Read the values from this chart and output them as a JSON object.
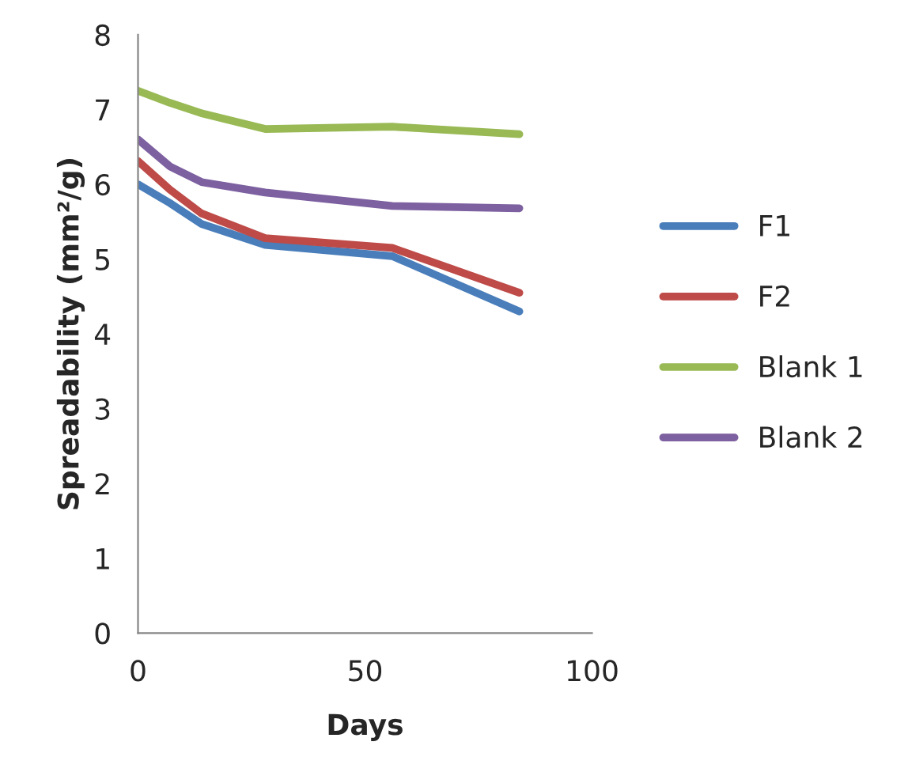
{
  "chart_data": {
    "type": "line",
    "xlabel": "Days",
    "ylabel": "Spreadability (mm²/g)",
    "x": [
      0,
      7,
      14,
      28,
      56,
      84
    ],
    "xlim": [
      0,
      100
    ],
    "xticks": [
      0,
      50,
      100
    ],
    "ylim": [
      0,
      8
    ],
    "yticks": [
      0,
      1,
      2,
      3,
      4,
      5,
      6,
      7,
      8
    ],
    "grid": false,
    "legend": "right",
    "marker": "none",
    "line_style": "solid",
    "series": [
      {
        "name": "F1",
        "color": "#4a7ebb",
        "values": [
          6.0,
          5.75,
          5.47,
          5.19,
          5.04,
          4.3
        ]
      },
      {
        "name": "F2",
        "color": "#be4b48",
        "values": [
          6.31,
          5.93,
          5.61,
          5.28,
          5.15,
          4.55
        ]
      },
      {
        "name": "Blank 1",
        "color": "#98b954",
        "values": [
          7.25,
          7.09,
          6.95,
          6.74,
          6.77,
          6.67
        ]
      },
      {
        "name": "Blank 2",
        "color": "#7d60a0",
        "values": [
          6.6,
          6.24,
          6.03,
          5.89,
          5.71,
          5.68
        ]
      }
    ]
  }
}
